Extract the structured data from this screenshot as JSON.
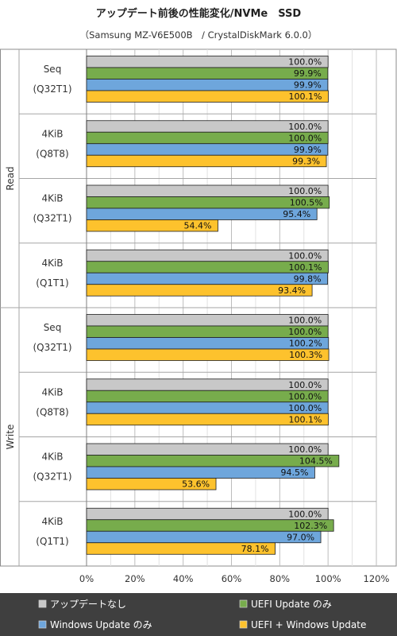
{
  "chart_data": {
    "type": "bar",
    "orientation": "horizontal",
    "title": "アップデート前後の性能変化/NVMe　SSD",
    "subtitle": "（Samsung MZ-V6E500B　/ CrystalDiskMark 6.0.0）",
    "xlim": [
      0,
      120
    ],
    "x_ticks": [
      "0%",
      "20%",
      "40%",
      "60%",
      "80%",
      "100%",
      "120%"
    ],
    "grid": true,
    "legend_position": "bottom",
    "groups": [
      {
        "label": "Read",
        "categories": [
          {
            "line1": "Seq",
            "line2": "(Q32T1)"
          },
          {
            "line1": "4KiB",
            "line2": "(Q8T8)"
          },
          {
            "line1": "4KiB",
            "line2": "(Q32T1)"
          },
          {
            "line1": "4KiB",
            "line2": "(Q1T1)"
          }
        ]
      },
      {
        "label": "Write",
        "categories": [
          {
            "line1": "Seq",
            "line2": "(Q32T1)"
          },
          {
            "line1": "4KiB",
            "line2": "(Q8T8)"
          },
          {
            "line1": "4KiB",
            "line2": "(Q32T1)"
          },
          {
            "line1": "4KiB",
            "line2": "(Q1T1)"
          }
        ]
      }
    ],
    "series": [
      {
        "name": "アップデートなし",
        "color": "#c8c8c8",
        "values": [
          100.0,
          100.0,
          100.0,
          100.0,
          100.0,
          100.0,
          100.0,
          100.0
        ],
        "labels": [
          "100.0%",
          "100.0%",
          "100.0%",
          "100.0%",
          "100.0%",
          "100.0%",
          "100.0%",
          "100.0%"
        ]
      },
      {
        "name": "UEFI Update のみ",
        "color": "#77ac4c",
        "values": [
          99.9,
          100.0,
          100.5,
          100.1,
          100.0,
          100.0,
          104.5,
          102.3
        ],
        "labels": [
          "99.9%",
          "100.0%",
          "100.5%",
          "100.1%",
          "100.0%",
          "100.0%",
          "104.5%",
          "102.3%"
        ]
      },
      {
        "name": "Windows Update のみ",
        "color": "#6ea6dc",
        "values": [
          99.9,
          99.9,
          95.4,
          99.8,
          100.2,
          100.0,
          94.5,
          97.0
        ],
        "labels": [
          "99.9%",
          "99.9%",
          "95.4%",
          "99.8%",
          "100.2%",
          "100.0%",
          "94.5%",
          "97.0%"
        ]
      },
      {
        "name": "UEFI + Windows Update",
        "color": "#fdc22d",
        "values": [
          100.1,
          99.3,
          54.4,
          93.4,
          100.3,
          100.1,
          53.6,
          78.1
        ],
        "labels": [
          "100.1%",
          "99.3%",
          "54.4%",
          "93.4%",
          "100.3%",
          "100.1%",
          "53.6%",
          "78.1%"
        ]
      }
    ]
  }
}
